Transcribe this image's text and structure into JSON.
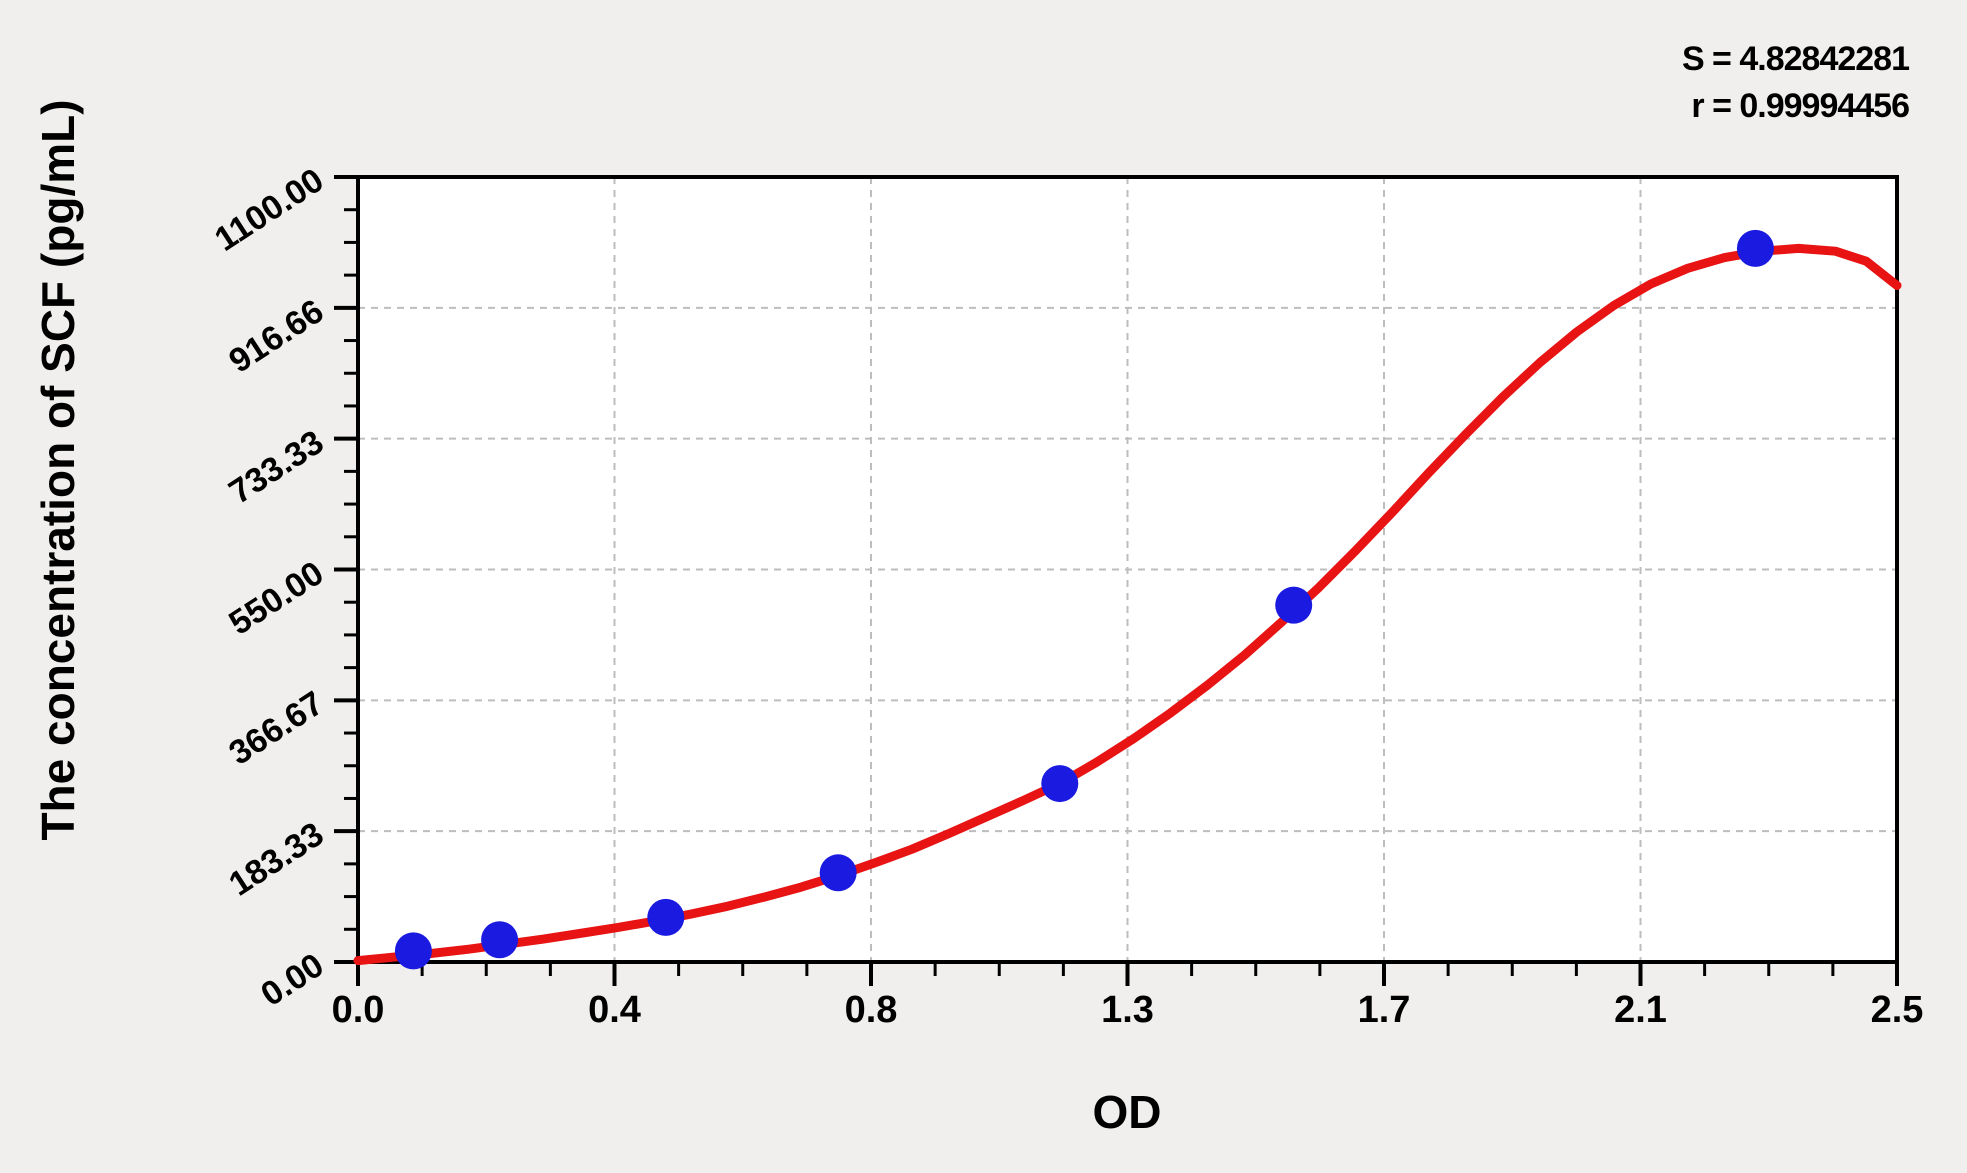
{
  "stats": {
    "s_line": "S = 4.82842281",
    "r_line": "r = 0.99994456"
  },
  "colors": {
    "page_bg": "#f0efed",
    "plot_bg": "#ffffff",
    "axis": "#000000",
    "grid": "#bdbdbd",
    "curve": "#e81313",
    "points": "#1a1ae0"
  },
  "chart_data": {
    "type": "scatter",
    "title": "",
    "xlabel": "OD",
    "ylabel": "The concentration of SCF (pg/mL)",
    "xlim": [
      0,
      2.5
    ],
    "ylim": [
      0,
      1100
    ],
    "x_tick_labels": [
      "0.0",
      "0.4",
      "0.8",
      "1.3",
      "1.7",
      "2.1",
      "2.5"
    ],
    "y_tick_labels": [
      "0.00",
      "183.33",
      "366.67",
      "550.00",
      "733.33",
      "916.66",
      "1100.00"
    ],
    "major_divisions": 6,
    "minor_ticks_per_major": 3,
    "grid": "dashed gray lines at major ticks, plot framed with black border, ticks outside on left and bottom",
    "legend_position": "none",
    "fit": {
      "S": 4.82842281,
      "r": 0.99994456
    },
    "series": [
      {
        "name": "standard-points",
        "type": "scatter",
        "color_key": "points",
        "points": [
          [
            0.09,
            15.6
          ],
          [
            0.23,
            31.2
          ],
          [
            0.5,
            62.5
          ],
          [
            0.78,
            125
          ],
          [
            1.14,
            250
          ],
          [
            1.52,
            500
          ],
          [
            2.27,
            1000
          ]
        ]
      },
      {
        "name": "fitted-curve",
        "type": "line",
        "color_key": "curve",
        "points": [
          [
            0,
            2
          ],
          [
            0.06,
            7
          ],
          [
            0.12,
            12
          ],
          [
            0.18,
            18
          ],
          [
            0.24,
            25
          ],
          [
            0.3,
            32
          ],
          [
            0.36,
            40
          ],
          [
            0.42,
            48
          ],
          [
            0.48,
            57
          ],
          [
            0.54,
            67
          ],
          [
            0.6,
            78
          ],
          [
            0.66,
            91
          ],
          [
            0.72,
            105
          ],
          [
            0.78,
            121
          ],
          [
            0.84,
            139
          ],
          [
            0.9,
            158
          ],
          [
            0.96,
            180
          ],
          [
            1.02,
            203
          ],
          [
            1.08,
            226
          ],
          [
            1.14,
            250
          ],
          [
            1.2,
            280
          ],
          [
            1.26,
            313
          ],
          [
            1.32,
            349
          ],
          [
            1.38,
            388
          ],
          [
            1.44,
            430
          ],
          [
            1.5,
            476
          ],
          [
            1.56,
            524
          ],
          [
            1.62,
            576
          ],
          [
            1.68,
            630
          ],
          [
            1.74,
            686
          ],
          [
            1.8,
            740
          ],
          [
            1.86,
            792
          ],
          [
            1.92,
            840
          ],
          [
            1.98,
            883
          ],
          [
            2.04,
            920
          ],
          [
            2.1,
            950
          ],
          [
            2.16,
            972
          ],
          [
            2.22,
            987
          ],
          [
            2.28,
            996
          ],
          [
            2.34,
            1000
          ],
          [
            2.4,
            996
          ],
          [
            2.45,
            982
          ],
          [
            2.5,
            948
          ]
        ]
      }
    ]
  }
}
